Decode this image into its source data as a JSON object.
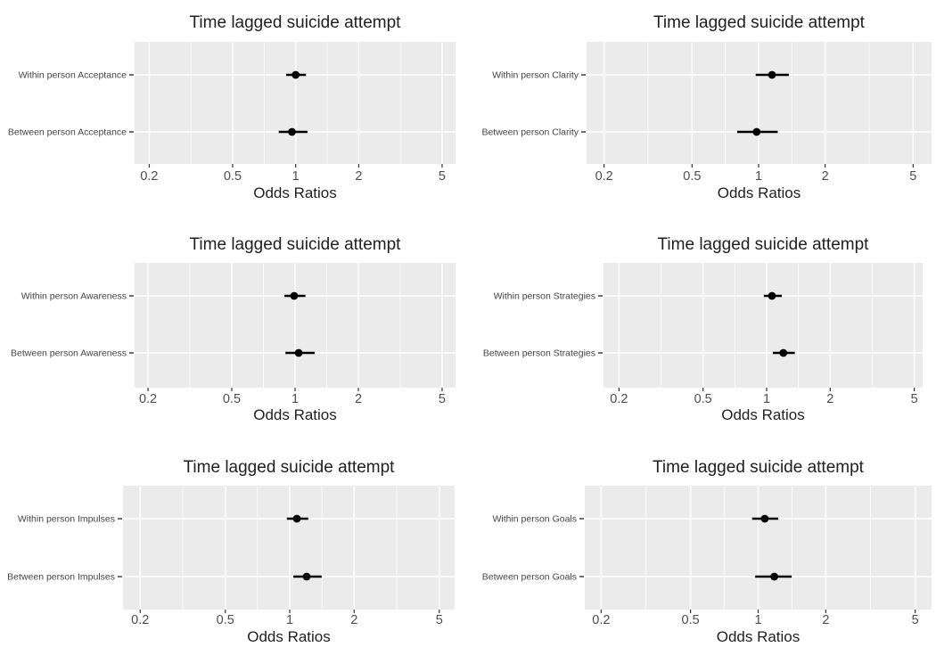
{
  "figure": {
    "background": "#ffffff",
    "panel_background": "#ebebeb",
    "gridline_color": "#ffffff",
    "point_color": "#000000",
    "ci_color": "#000000",
    "title_color": "#1f1f1f",
    "axis_title_color": "#1f1f1f",
    "tick_label_color": "#4d4d4d",
    "y_label_color": "#454545",
    "tick_mark_color": "#333333"
  },
  "chart_data": [
    {
      "type": "scatter",
      "subtype": "forest-pointrange",
      "title": "Time lagged suicide attempt",
      "xlabel": "Odds Ratios",
      "x_scale": "log10",
      "xlim": [
        0.16,
        5.9
      ],
      "x_ticks": [
        0.2,
        0.5,
        1,
        2,
        5
      ],
      "x_tick_labels": [
        "0.2",
        "0.5",
        "1",
        "2",
        "5"
      ],
      "x_minor_ticks": [
        0.316,
        0.707,
        1.414,
        3.162
      ],
      "grid": true,
      "legend": "none",
      "rows": [
        {
          "label": "Within person Acceptance",
          "or": 1.0,
          "ci_low": 0.9,
          "ci_high": 1.12
        },
        {
          "label": "Between person Acceptance",
          "or": 0.96,
          "ci_low": 0.83,
          "ci_high": 1.14
        }
      ]
    },
    {
      "type": "scatter",
      "subtype": "forest-pointrange",
      "title": "Time lagged suicide attempt",
      "xlabel": "Odds Ratios",
      "x_scale": "log10",
      "xlim": [
        0.16,
        5.9
      ],
      "x_ticks": [
        0.2,
        0.5,
        1,
        2,
        5
      ],
      "x_tick_labels": [
        "0.2",
        "0.5",
        "1",
        "2",
        "5"
      ],
      "x_minor_ticks": [
        0.316,
        0.707,
        1.414,
        3.162
      ],
      "grid": true,
      "legend": "none",
      "rows": [
        {
          "label": "Within person Clarity",
          "or": 1.15,
          "ci_low": 0.97,
          "ci_high": 1.37
        },
        {
          "label": "Between person Clarity",
          "or": 0.98,
          "ci_low": 0.8,
          "ci_high": 1.22
        }
      ]
    },
    {
      "type": "scatter",
      "subtype": "forest-pointrange",
      "title": "Time lagged suicide attempt",
      "xlabel": "Odds Ratios",
      "x_scale": "log10",
      "xlim": [
        0.16,
        5.9
      ],
      "x_ticks": [
        0.2,
        0.5,
        1,
        2,
        5
      ],
      "x_tick_labels": [
        "0.2",
        "0.5",
        "1",
        "2",
        "5"
      ],
      "x_minor_ticks": [
        0.316,
        0.707,
        1.414,
        3.162
      ],
      "grid": true,
      "legend": "none",
      "rows": [
        {
          "label": "Within person Awareness",
          "or": 0.99,
          "ci_low": 0.89,
          "ci_high": 1.12
        },
        {
          "label": "Between person Awareness",
          "or": 1.04,
          "ci_low": 0.9,
          "ci_high": 1.24
        }
      ]
    },
    {
      "type": "scatter",
      "subtype": "forest-pointrange",
      "title": "Time lagged suicide attempt",
      "xlabel": "Odds Ratios",
      "x_scale": "log10",
      "xlim": [
        0.16,
        5.9
      ],
      "x_ticks": [
        0.2,
        0.5,
        1,
        2,
        5
      ],
      "x_tick_labels": [
        "0.2",
        "0.5",
        "1",
        "2",
        "5"
      ],
      "x_minor_ticks": [
        0.316,
        0.707,
        1.414,
        3.162
      ],
      "grid": true,
      "legend": "none",
      "rows": [
        {
          "label": "Within person Strategies",
          "or": 1.06,
          "ci_low": 0.97,
          "ci_high": 1.18
        },
        {
          "label": "Between person Strategies",
          "or": 1.2,
          "ci_low": 1.07,
          "ci_high": 1.36
        }
      ]
    },
    {
      "type": "scatter",
      "subtype": "forest-pointrange",
      "title": "Time lagged suicide attempt",
      "xlabel": "Odds Ratios",
      "x_scale": "log10",
      "xlim": [
        0.16,
        5.9
      ],
      "x_ticks": [
        0.2,
        0.5,
        1,
        2,
        5
      ],
      "x_tick_labels": [
        "0.2",
        "0.5",
        "1",
        "2",
        "5"
      ],
      "x_minor_ticks": [
        0.316,
        0.707,
        1.414,
        3.162
      ],
      "grid": true,
      "legend": "none",
      "rows": [
        {
          "label": "Within person Impulses",
          "or": 1.08,
          "ci_low": 0.97,
          "ci_high": 1.22
        },
        {
          "label": "Between person Impulses",
          "or": 1.2,
          "ci_low": 1.04,
          "ci_high": 1.41
        }
      ]
    },
    {
      "type": "scatter",
      "subtype": "forest-pointrange",
      "title": "Time lagged suicide attempt",
      "xlabel": "Odds Ratios",
      "x_scale": "log10",
      "xlim": [
        0.16,
        5.9
      ],
      "x_ticks": [
        0.2,
        0.5,
        1,
        2,
        5
      ],
      "x_tick_labels": [
        "0.2",
        "0.5",
        "1",
        "2",
        "5"
      ],
      "x_minor_ticks": [
        0.316,
        0.707,
        1.414,
        3.162
      ],
      "grid": true,
      "legend": "none",
      "rows": [
        {
          "label": "Within person Goals",
          "or": 1.07,
          "ci_low": 0.94,
          "ci_high": 1.23
        },
        {
          "label": "Between person Goals",
          "or": 1.18,
          "ci_low": 0.97,
          "ci_high": 1.41
        }
      ]
    }
  ]
}
